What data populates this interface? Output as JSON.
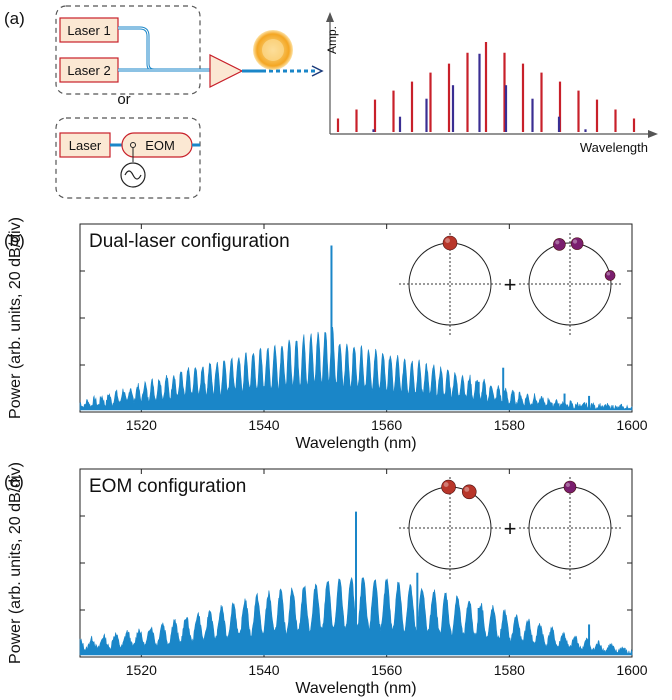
{
  "panel_labels": {
    "a": "(a)",
    "b": "(b)",
    "c": "(c)"
  },
  "schematic": {
    "laser1": "Laser 1",
    "laser2": "Laser 2",
    "or": "or",
    "laser": "Laser",
    "eom": "EOM",
    "sine_icon": "sine-source-icon",
    "amp_icon": "amplifier-triangle-icon",
    "microresonator_icon": "microresonator-icon"
  },
  "colors": {
    "spectrum": "#1a86c8",
    "red": "#c8202a",
    "blue": "#3a2e92",
    "box_fill": "#fbe8d3",
    "box_border": "#c8202a",
    "sphere_red": "#b8362a",
    "sphere_purple": "#7a1e6e"
  },
  "chart_data": [
    {
      "type": "bar",
      "title": "",
      "ylabel": "Amp.",
      "xlabel": "Wavelength",
      "series": [
        {
          "color": "red",
          "values": [
            1.5,
            2.5,
            3.6,
            4.6,
            5.6,
            6.6,
            7.6,
            8.8,
            10.0,
            8.8,
            7.6,
            6.6,
            5.6,
            4.6,
            3.6,
            2.5,
            1.5
          ]
        },
        {
          "color": "blue",
          "values": [
            0.3,
            1.7,
            3.7,
            5.2,
            8.7,
            5.2,
            3.7,
            1.7,
            0.3
          ]
        }
      ]
    },
    {
      "type": "line",
      "annotation": "Dual-laser configuration",
      "xlabel": "Wavelength (nm)",
      "ylabel": "Power (arb. units, 20 dB/div)",
      "xlim": [
        1510,
        1600
      ],
      "xticks": [
        "1520",
        "1540",
        "1560",
        "1580",
        "1600"
      ],
      "envelope": [
        [
          1510,
          0.3
        ],
        [
          1520,
          1.1
        ],
        [
          1530,
          1.9
        ],
        [
          1540,
          2.6
        ],
        [
          1545,
          3.0
        ],
        [
          1550,
          3.4
        ],
        [
          1551,
          3.7
        ],
        [
          1552,
          2.9
        ],
        [
          1560,
          2.4
        ],
        [
          1570,
          1.7
        ],
        [
          1575,
          1.3
        ],
        [
          1580,
          0.8
        ],
        [
          1590,
          0.3
        ],
        [
          1600,
          0.1
        ]
      ],
      "peaks": [
        [
          1551,
          7.0
        ],
        [
          1575,
          1.2
        ],
        [
          1579,
          1.8
        ],
        [
          1589,
          0.7
        ],
        [
          1593,
          0.6
        ]
      ],
      "inset_plus": "+"
    },
    {
      "type": "line",
      "annotation": "EOM configuration",
      "xlabel": "Wavelength (nm)",
      "ylabel": "Power (arb. units, 20 dB/div)",
      "xlim": [
        1510,
        1600
      ],
      "xticks": [
        "1520",
        "1540",
        "1560",
        "1580",
        "1600"
      ],
      "envelope": [
        [
          1510,
          0.6
        ],
        [
          1520,
          1.1
        ],
        [
          1530,
          1.8
        ],
        [
          1540,
          2.6
        ],
        [
          1550,
          3.1
        ],
        [
          1555,
          3.3
        ],
        [
          1560,
          3.2
        ],
        [
          1570,
          2.6
        ],
        [
          1580,
          1.8
        ],
        [
          1590,
          0.8
        ],
        [
          1600,
          0.2
        ]
      ],
      "peaks": [
        [
          1555,
          6.1
        ],
        [
          1565,
          3.5
        ],
        [
          1575,
          2.0
        ],
        [
          1583,
          1.1
        ],
        [
          1593,
          1.3
        ]
      ],
      "inset_plus": "+"
    }
  ]
}
